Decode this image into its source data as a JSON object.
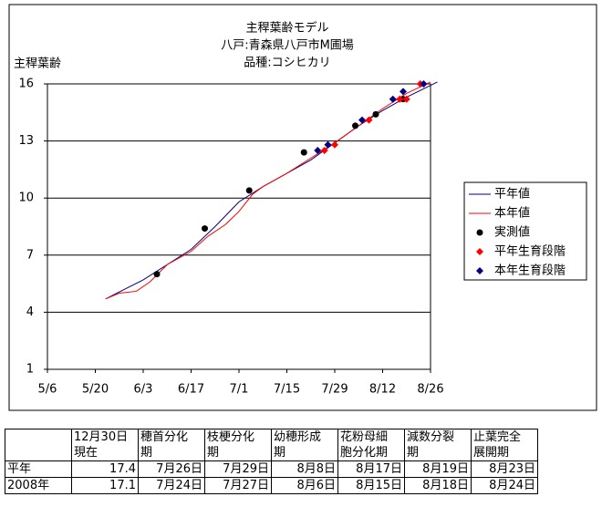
{
  "chart_data": {
    "type": "line",
    "title": [
      "主稈葉齢モデル",
      "八戸:青森県八戸市M圃場",
      "品種:コシヒカリ"
    ],
    "y_label": "主稈葉齢",
    "xlim": [
      "5/6",
      "8/26"
    ],
    "xticks": [
      "5/6",
      "5/20",
      "6/3",
      "6/17",
      "7/1",
      "7/15",
      "7/29",
      "8/12",
      "8/26"
    ],
    "ylim": [
      1,
      16
    ],
    "yticks": [
      1,
      4,
      7,
      10,
      13,
      16
    ],
    "grid": true,
    "legend": "right",
    "series": [
      {
        "name": "平年値",
        "kind": "line",
        "color": "#000080",
        "x": [
          "5/23",
          "6/3",
          "6/17",
          "6/24",
          "7/1",
          "7/8",
          "7/15",
          "7/22",
          "7/29",
          "8/5",
          "8/12",
          "8/19",
          "8/28"
        ],
        "values": [
          4.7,
          5.7,
          7.3,
          8.5,
          9.8,
          10.6,
          11.3,
          12.0,
          12.9,
          13.8,
          14.6,
          15.3,
          16.1
        ]
      },
      {
        "name": "本年値",
        "kind": "line",
        "color": "#ff0000",
        "x": [
          "5/23",
          "5/27",
          "6/1",
          "6/5",
          "6/10",
          "6/17",
          "6/22",
          "6/27",
          "7/1",
          "7/5",
          "7/8",
          "7/15",
          "7/22",
          "7/29",
          "8/5",
          "8/12",
          "8/19",
          "8/26"
        ],
        "values": [
          4.7,
          5.0,
          5.1,
          5.6,
          6.5,
          7.2,
          8.0,
          8.6,
          9.3,
          10.2,
          10.6,
          11.3,
          12.1,
          12.9,
          13.8,
          14.7,
          15.5,
          16.1
        ]
      },
      {
        "name": "実測値",
        "kind": "circle",
        "color": "#000000",
        "x": [
          "6/7",
          "6/21",
          "7/4",
          "7/20",
          "8/4",
          "8/10",
          "8/18"
        ],
        "values": [
          6.0,
          8.4,
          10.4,
          12.4,
          13.8,
          14.4,
          15.2
        ]
      },
      {
        "name": "平年生育段階",
        "kind": "diamond",
        "color": "#ff0000",
        "x": [
          "7/26",
          "7/29",
          "8/8",
          "8/17",
          "8/19",
          "8/23"
        ],
        "values": [
          12.5,
          12.8,
          14.1,
          15.2,
          15.2,
          16.0
        ]
      },
      {
        "name": "本年生育段階",
        "kind": "diamond",
        "color": "#000080",
        "x": [
          "7/24",
          "7/27",
          "8/6",
          "8/15",
          "8/18",
          "8/24"
        ],
        "values": [
          12.5,
          12.8,
          14.1,
          15.2,
          15.6,
          16.0
        ]
      }
    ]
  },
  "table": {
    "header": [
      [
        "12月30日",
        "現在"
      ],
      [
        "穂首分化",
        "期"
      ],
      [
        "枝梗分化",
        "期"
      ],
      [
        "幼穂形成",
        "期"
      ],
      [
        "花粉母細",
        "胞分化期"
      ],
      [
        "減数分裂",
        "期"
      ],
      [
        "止葉完全",
        "展開期"
      ]
    ],
    "rows": [
      [
        "平年",
        17.4,
        "7月26日",
        "7月29日",
        "8月8日",
        "8月17日",
        "8月19日",
        "8月23日"
      ],
      [
        "2008年",
        17.1,
        "7月24日",
        "7月27日",
        "8月6日",
        "8月15日",
        "8月18日",
        "8月24日"
      ]
    ]
  }
}
